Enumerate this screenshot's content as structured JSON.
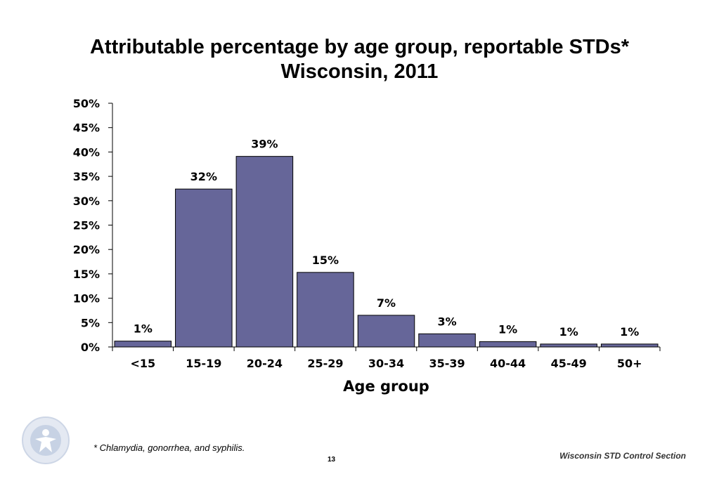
{
  "title_line1": "Attributable percentage by age group, reportable STDs*",
  "title_line2": "Wisconsin, 2011",
  "footnote": "* Chlamydia, gonorrhea, and syphilis.",
  "page_number": "13",
  "source": "Wisconsin STD Control Section",
  "colors": {
    "bar_fill": "#666699",
    "bar_stroke": "#000000"
  },
  "chart_data": {
    "type": "bar",
    "xlabel": "Age group",
    "ylabel": "",
    "categories": [
      "<15",
      "15-19",
      "20-24",
      "25-29",
      "30-34",
      "35-39",
      "40-44",
      "45-49",
      "50+"
    ],
    "values": [
      1.2,
      32.4,
      39.1,
      15.3,
      6.5,
      2.7,
      1.1,
      0.6,
      0.6
    ],
    "data_labels": [
      "1%",
      "32%",
      "39%",
      "15%",
      "7%",
      "3%",
      "1%",
      "1%",
      "1%"
    ],
    "ylim": [
      0,
      50
    ],
    "yticks": [
      0,
      5,
      10,
      15,
      20,
      25,
      30,
      35,
      40,
      45,
      50
    ],
    "ytick_labels": [
      "0%",
      "5%",
      "10%",
      "15%",
      "20%",
      "25%",
      "30%",
      "35%",
      "40%",
      "45%",
      "50%"
    ],
    "grid": false,
    "legend": "none"
  }
}
